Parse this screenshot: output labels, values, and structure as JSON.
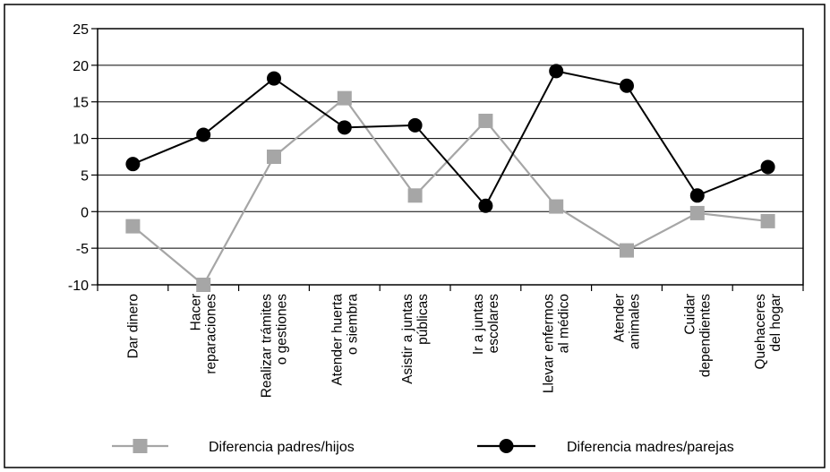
{
  "chart_data": {
    "type": "line",
    "categories": [
      [
        "Dar dinero"
      ],
      [
        "Hacer",
        "reparaciones"
      ],
      [
        "Realizar trámites",
        "o gestiones"
      ],
      [
        "Atender huerta",
        "o siembra"
      ],
      [
        "Asistir a juntas",
        "públicas"
      ],
      [
        "Ir a juntas",
        "escolares"
      ],
      [
        "Llevar enfermos",
        "al médico"
      ],
      [
        "Atender",
        "animales"
      ],
      [
        "Cuidar",
        "dependientes"
      ],
      [
        "Quehaceres",
        "del hogar"
      ]
    ],
    "series": [
      {
        "name": "Diferencia padres/hijos",
        "marker": "square",
        "color": "#a6a6a6",
        "values": [
          -2,
          -10,
          7.5,
          15.5,
          2.2,
          12.4,
          0.7,
          -5.3,
          -0.2,
          -1.3
        ]
      },
      {
        "name": "Diferencia madres/parejas",
        "marker": "circle",
        "color": "#000000",
        "values": [
          6.5,
          10.5,
          18.2,
          11.5,
          11.8,
          0.8,
          19.2,
          17.2,
          2.2,
          6.1
        ]
      }
    ],
    "y_ticks": [
      25,
      20,
      15,
      10,
      5,
      0,
      -5,
      -10
    ],
    "ylim": [
      -10,
      25
    ],
    "xlabel": "",
    "ylabel": "",
    "title": "",
    "grid": "horizontal",
    "legend_position": "bottom"
  }
}
